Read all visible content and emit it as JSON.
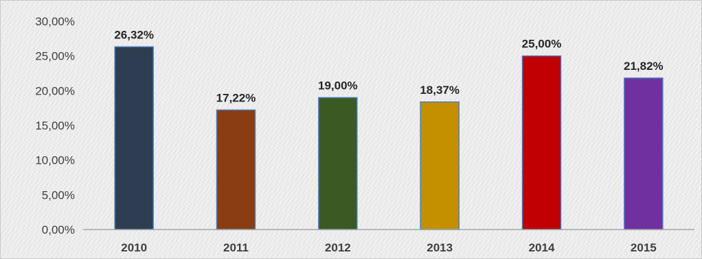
{
  "chart_data": {
    "type": "bar",
    "categories": [
      "2010",
      "2011",
      "2012",
      "2013",
      "2014",
      "2015"
    ],
    "values": [
      26.32,
      17.22,
      19.0,
      18.37,
      25.0,
      21.82
    ],
    "data_labels": [
      "26,32%",
      "17,22%",
      "19,00%",
      "18,37%",
      "25,00%",
      "21,82%"
    ],
    "colors": [
      "#2f3d52",
      "#8a3d12",
      "#3b5a23",
      "#c49000",
      "#c00000",
      "#7030a0"
    ],
    "ylim": [
      0,
      30
    ],
    "y_ticks": [
      0,
      5,
      10,
      15,
      20,
      25,
      30
    ],
    "y_tick_labels": [
      "0,00%",
      "5,00%",
      "10,00%",
      "15,00%",
      "20,00%",
      "25,00%",
      "30,00%"
    ],
    "title": "",
    "xlabel": "",
    "ylabel": "",
    "grid": false,
    "legend": "none"
  }
}
